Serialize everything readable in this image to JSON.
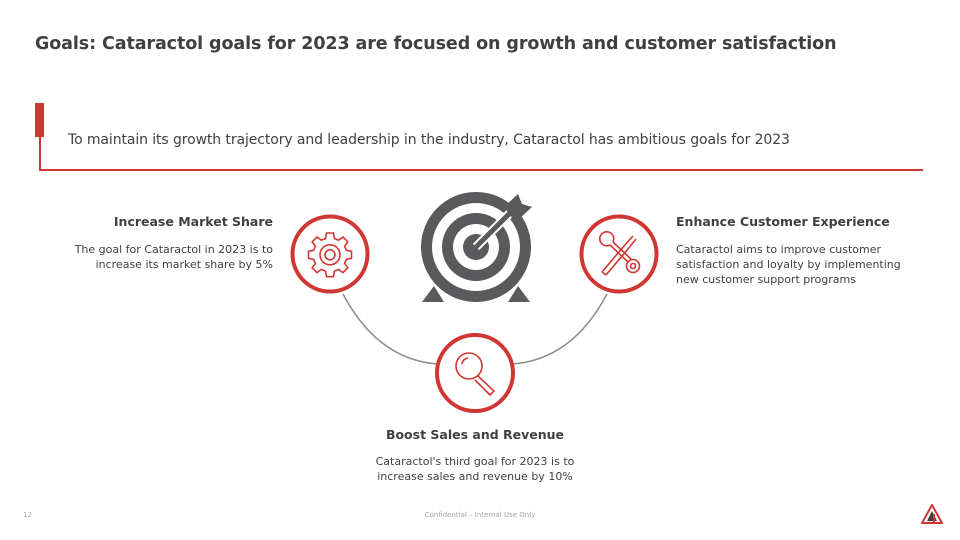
{
  "title": "Goals: Cataractol goals for 2023 are focused on growth and customer satisfaction",
  "subtitle": "To maintain its growth trajectory and leadership in the industry, Cataractol has ambitious goals for 2023",
  "goals": [
    {
      "heading": "Increase Market Share",
      "lines": [
        "The goal for Cataractol in 2023 is to",
        "increase its market share by 5%"
      ],
      "icon": "gear-icon"
    },
    {
      "heading": "Enhance Customer Experience",
      "lines": [
        "Cataractol aims to improve customer",
        "satisfaction and loyalty by implementing",
        "new customer support programs"
      ],
      "icon": "tools-icon"
    },
    {
      "heading": "Boost Sales and Revenue",
      "lines": [
        "Cataractol's third goal for 2023 is to",
        "increase  sales and revenue by 10%"
      ],
      "icon": "magnifier-icon"
    }
  ],
  "center_icon": "target-icon",
  "footer": {
    "page_number": "12",
    "confidential": "Confidential – Internal Use Only"
  },
  "colors": {
    "accent": "#d03632",
    "text": "#404040",
    "icon_gray": "#5a5a5c",
    "connector": "#8c8c8c"
  }
}
